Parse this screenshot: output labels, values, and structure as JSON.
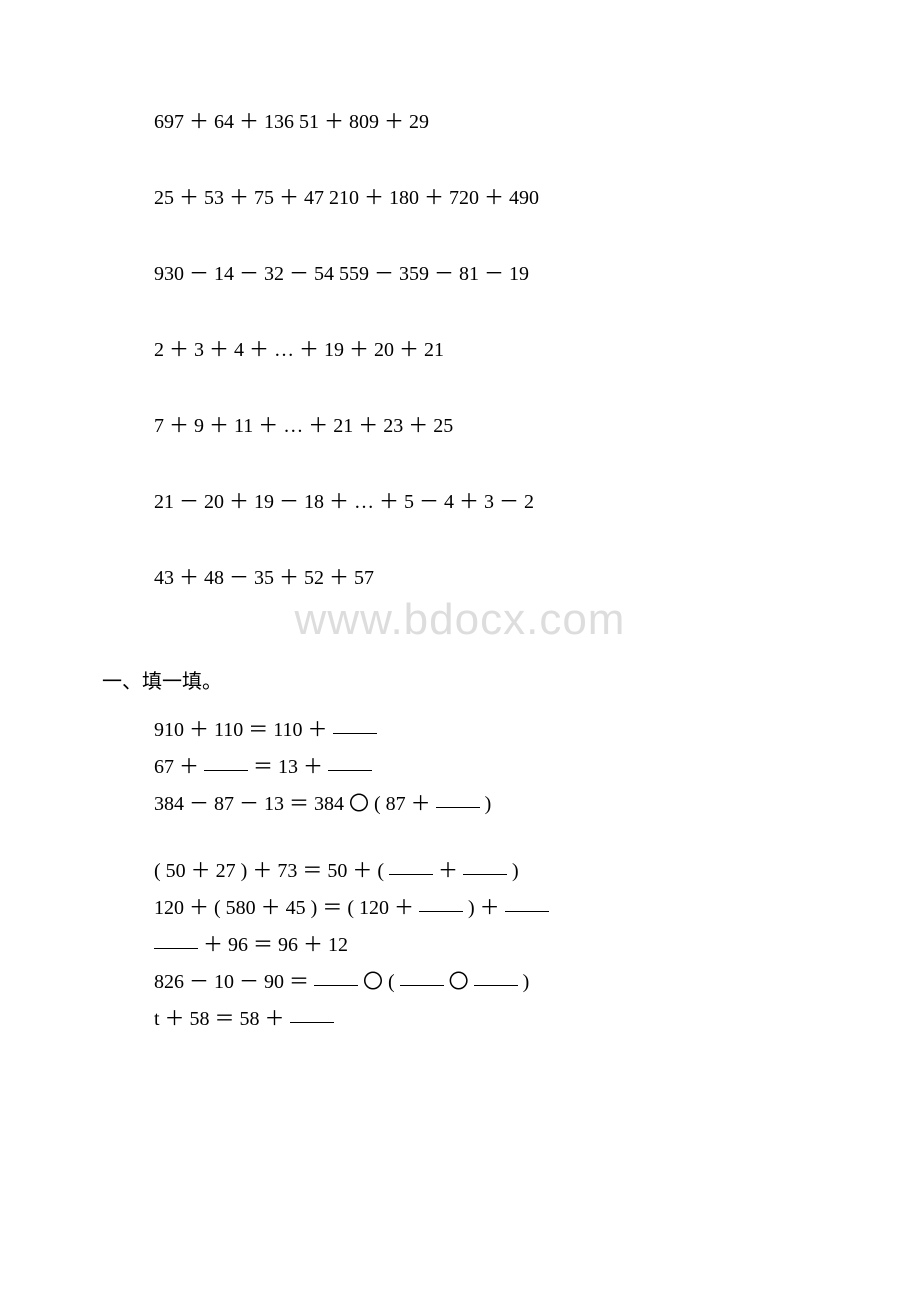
{
  "watermark": "www.bdocx.com",
  "expressions": [
    "697 ＋ 64  ＋ 136     51 ＋ 809 ＋ 29",
    "25 ＋ 53 ＋ 75 ＋ 47    210 ＋ 180 ＋ 720 ＋ 490",
    "930 － 14 － 32 － 54    559 － 359 － 81 － 19",
    "2 ＋ 3 ＋ 4 ＋ … ＋ 19 ＋ 20 ＋ 21",
    "7 ＋ 9 ＋ 11 ＋ … ＋ 21 ＋ 23 ＋ 25",
    "21 － 20 ＋ 19 － 18 ＋ … ＋ 5 － 4 ＋ 3 － 2",
    "43 ＋ 48 － 35 ＋ 52 ＋ 57"
  ],
  "section_heading": "一、填一填。",
  "fill_lines_group1": [
    {
      "parts": [
        "910 ＋ 110 ＝ 110 ＋ ",
        {
          "blank": true
        }
      ]
    },
    {
      "parts": [
        "67 ＋ ",
        {
          "blank": true
        },
        "  ＝ 13 ＋ ",
        {
          "blank": true
        }
      ]
    },
    {
      "parts": [
        "384 － 87 － 13 ＝ 384 〇 ( 87 ＋ ",
        {
          "blank": true
        },
        " )"
      ]
    }
  ],
  "fill_lines_group2": [
    {
      "parts": [
        "( 50 ＋ 27 ) ＋ 73 ＝ 50 ＋ ( ",
        {
          "blank": true
        },
        " ＋ ",
        {
          "blank": true
        },
        " )"
      ]
    },
    {
      "parts": [
        "120 ＋ ( 580 ＋ 45 ) ＝ ( 120 ＋ ",
        {
          "blank": true
        },
        " ) ＋ ",
        {
          "blank": true
        }
      ]
    },
    {
      "parts": [
        {
          "blank": true
        },
        " ＋ 96 ＝ 96 ＋ 12"
      ]
    },
    {
      "parts": [
        "826 － 10 － 90 ＝ ",
        {
          "blank": true
        },
        " 〇 ( ",
        {
          "blank": true
        },
        " 〇 ",
        {
          "blank": true
        },
        " )"
      ]
    },
    {
      "parts": [
        "t ＋ 58 ＝ 58 ＋ ",
        {
          "blank": true
        }
      ]
    }
  ]
}
